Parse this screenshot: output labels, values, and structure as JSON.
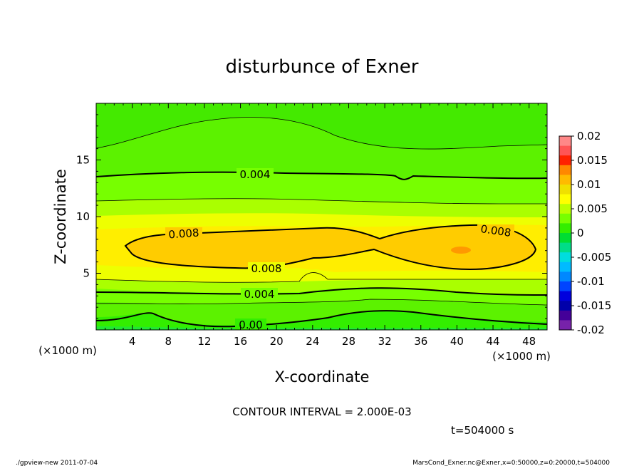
{
  "chart_data": {
    "type": "heatmap",
    "title": "disturbunce of Exner",
    "xlabel": "X-coordinate",
    "ylabel": "Z-coordinate",
    "x_unit_left": "(×1000 m)",
    "x_unit_right": "(×1000 m)",
    "xlim": [
      0,
      50
    ],
    "ylim": [
      0,
      20
    ],
    "x_ticks": [
      "4",
      "8",
      "12",
      "16",
      "20",
      "24",
      "28",
      "32",
      "36",
      "40",
      "44",
      "48"
    ],
    "y_ticks": [
      "5",
      "10",
      "15"
    ],
    "colorbar": {
      "range": [
        -0.02,
        0.02
      ],
      "labels": [
        "0.02",
        "0.015",
        "0.01",
        "0.005",
        "0",
        "-0.005",
        "-0.01",
        "-0.015",
        "-0.02"
      ],
      "colors": [
        "#ff8888",
        "#ff5555",
        "#ff2200",
        "#ff8800",
        "#ffbb00",
        "#f0e000",
        "#ffff00",
        "#bbff00",
        "#77ff00",
        "#33ee00",
        "#00dd33",
        "#00dd88",
        "#00dddd",
        "#00bbff",
        "#0088ff",
        "#0044ff",
        "#0000dd",
        "#0000aa",
        "#440099",
        "#7722aa"
      ]
    },
    "contour_labels": [
      {
        "text": "0.004",
        "x": 21,
        "z": 13.8
      },
      {
        "text": "0.008",
        "x": 9.5,
        "z": 8.5
      },
      {
        "text": "0.008",
        "x": 19,
        "z": 5.5
      },
      {
        "text": "0.008",
        "x": 42,
        "z": 8.0
      },
      {
        "text": "0.004",
        "x": 18.5,
        "z": 3.0
      },
      {
        "text": "0.00",
        "x": 17,
        "z": 0.3
      }
    ],
    "max_region": {
      "x": 40.5,
      "z": 7.2,
      "value": 0.0095
    },
    "contour_interval": "CONTOUR INTERVAL = 2.000E-03",
    "time": "t=504000 s"
  },
  "footer_left": "./gpview-new   2011-07-04",
  "footer_right": "MarsCond_Exner.nc@Exner,x=0:50000,z=0:20000,t=504000"
}
